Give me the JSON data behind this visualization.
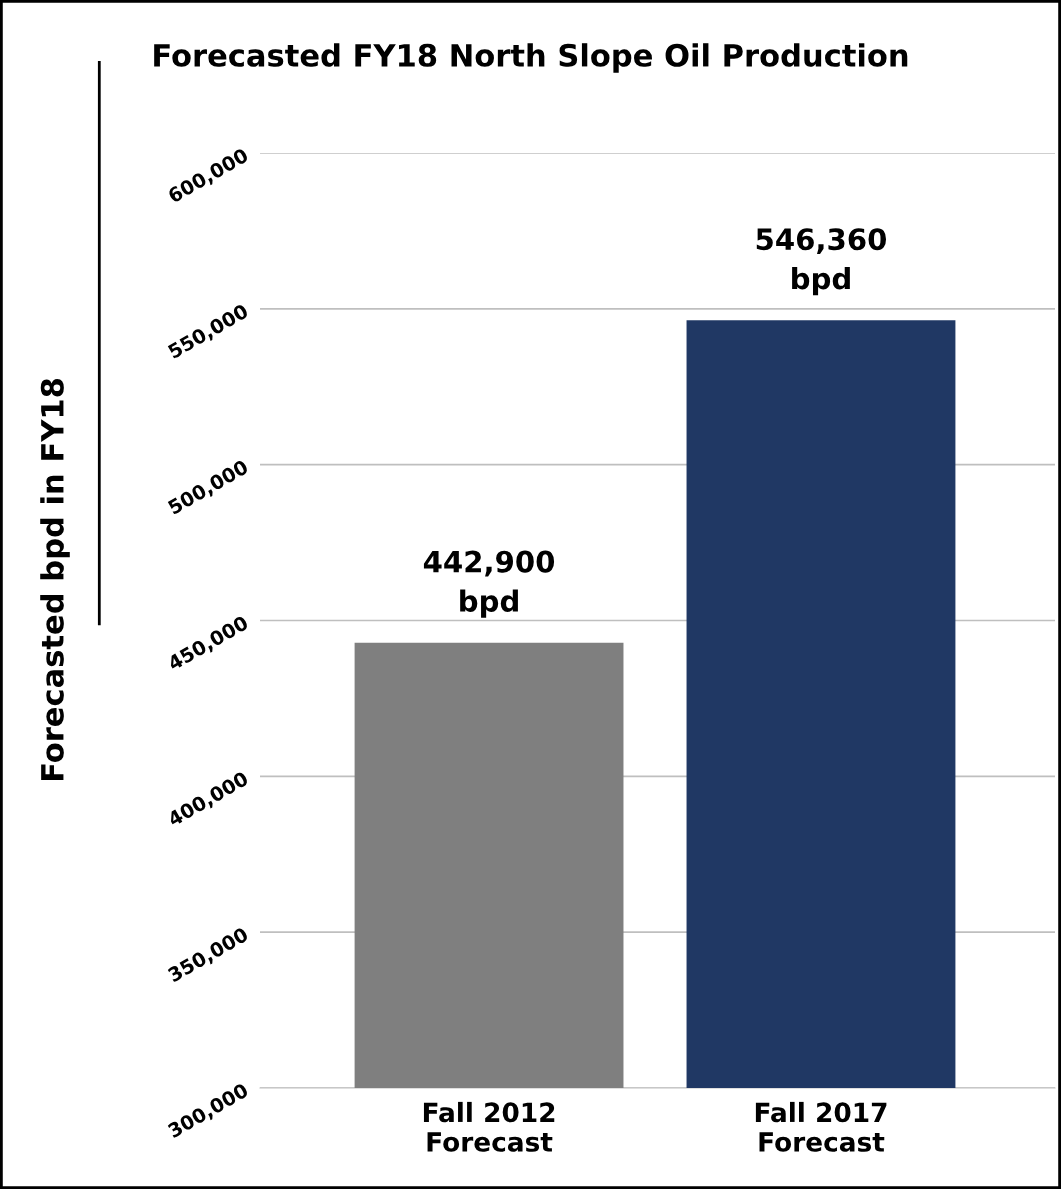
{
  "chart_data": {
    "type": "bar",
    "title": "Forecasted FY18 North Slope Oil Production",
    "ylabel": "Forecasted bpd in FY18",
    "categories": [
      "Fall 2012\nForecast",
      "Fall 2017\nForecast"
    ],
    "values": [
      442900,
      546360
    ],
    "colors": [
      "#7f7f7f",
      "#203864"
    ],
    "value_labels": [
      "442,900\nbpd",
      "546,360\nbpd"
    ],
    "ylim": [
      300000,
      600000
    ],
    "yticks": [
      {
        "value": 300000,
        "label": "300,000"
      },
      {
        "value": 350000,
        "label": "350,000"
      },
      {
        "value": 400000,
        "label": "400,000"
      },
      {
        "value": 450000,
        "label": "450,000"
      },
      {
        "value": 500000,
        "label": "500,000"
      },
      {
        "value": 550000,
        "label": "550,000"
      },
      {
        "value": 600000,
        "label": "600,000"
      }
    ],
    "grid": "y",
    "legend": false
  }
}
